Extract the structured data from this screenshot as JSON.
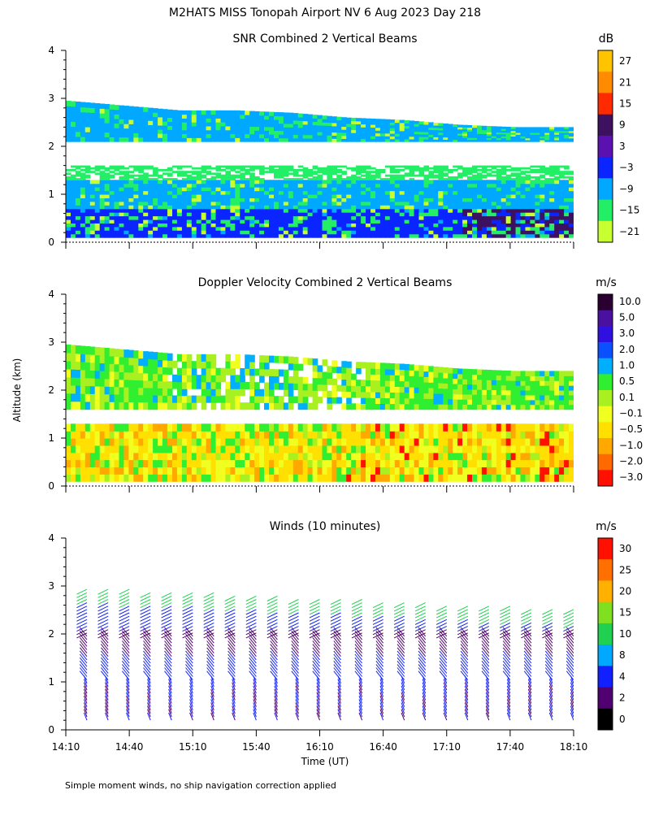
{
  "page": {
    "title": "M2HATS MISS Tonopah Airport NV   6 Aug 2023 Day 218",
    "y_axis_label": "Altitude (km)",
    "x_axis_label": "Time (UT)",
    "footnote": "Simple moment winds, no ship navigation correction applied"
  },
  "chart_data": [
    {
      "type": "heatmap",
      "title": "SNR Combined 2 Vertical Beams",
      "ylabel": "Altitude (km)",
      "yticks": [
        "0",
        "1",
        "2",
        "3",
        "4"
      ],
      "ylim": [
        0,
        4
      ],
      "xlim_hours": [
        14.1667,
        18.1667
      ],
      "colorbar": {
        "unit": "dB",
        "labels": [
          "27",
          "21",
          "15",
          "9",
          "3",
          "−3",
          "−9",
          "−15",
          "−21"
        ],
        "colors": [
          "#ffc400",
          "#ff8c00",
          "#ff2a00",
          "#3d1060",
          "#5b10b0",
          "#0a25ff",
          "#00a8ff",
          "#22ee66",
          "#c8ff30"
        ]
      },
      "signal_top_km": [
        2.95,
        2.85,
        2.75,
        2.75,
        2.7,
        2.6,
        2.55,
        2.45,
        2.4,
        2.4
      ],
      "layers_km": [
        {
          "bottom": 0.1,
          "top": 0.7,
          "level": "−3"
        },
        {
          "bottom": 0.7,
          "top": 1.3,
          "level": "−9"
        },
        {
          "bottom": 1.3,
          "top": 1.6,
          "level": "−15"
        },
        {
          "bottom": 2.1,
          "top": 2.9,
          "level": "−9"
        }
      ]
    },
    {
      "type": "heatmap",
      "title": "Doppler Velocity Combined 2 Vertical Beams",
      "ylabel": "Altitude (km)",
      "yticks": [
        "0",
        "1",
        "2",
        "3",
        "4"
      ],
      "ylim": [
        0,
        4
      ],
      "xlim_hours": [
        14.1667,
        18.1667
      ],
      "colorbar": {
        "unit": "m/s",
        "labels": [
          "10.0",
          "5.0",
          "3.0",
          "2.0",
          "1.0",
          "0.5",
          "0.1",
          "−0.1",
          "−0.5",
          "−1.0",
          "−2.0",
          "−3.0"
        ],
        "colors": [
          "#2a0030",
          "#4a10a0",
          "#3010e0",
          "#0a50ff",
          "#00b0ff",
          "#30ee30",
          "#a8f020",
          "#f0ff20",
          "#ffe000",
          "#ffa800",
          "#ff6a00",
          "#ff1000"
        ]
      },
      "layers_km": [
        {
          "bottom": 0.1,
          "top": 1.3,
          "level": "−0.5"
        },
        {
          "bottom": 1.6,
          "top": 2.9,
          "level": "0.5"
        }
      ]
    },
    {
      "type": "scatter",
      "title": "Winds (10 minutes)",
      "ylabel": "Altitude (km)",
      "yticks": [
        "0",
        "1",
        "2",
        "3",
        "4"
      ],
      "ylim": [
        0,
        4
      ],
      "xlabel": "Time (UT)",
      "xticks": [
        "14:10",
        "14:40",
        "15:10",
        "15:40",
        "16:10",
        "16:40",
        "17:10",
        "17:40",
        "18:10"
      ],
      "xlim_hours": [
        14.1667,
        18.1667
      ],
      "colorbar": {
        "unit": "m/s",
        "labels": [
          "30",
          "25",
          "20",
          "15",
          "10",
          "8",
          "4",
          "2",
          "0"
        ],
        "colors": [
          "#ff1000",
          "#ff7000",
          "#ffb000",
          "#80e020",
          "#20d050",
          "#00a8ff",
          "#1020ff",
          "#500070",
          "#000000"
        ]
      },
      "barb_interval_min": 10,
      "barb_top_km": 3.0,
      "barb_bottom_km": 0.2
    }
  ]
}
